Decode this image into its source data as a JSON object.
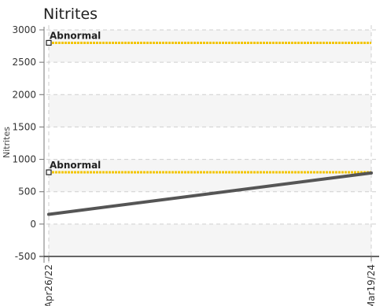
{
  "chart_data": {
    "type": "line",
    "title": "Nitrites",
    "xlabel": "",
    "ylabel": "Nitrites",
    "categories": [
      "Apr26/22",
      "Mar19/24"
    ],
    "yticks": [
      3000,
      2500,
      2000,
      1500,
      1000,
      500,
      0,
      -500
    ],
    "ylim": [
      -500,
      3000
    ],
    "grid": true,
    "series": [
      {
        "values": [
          150,
          790
        ],
        "color": "#555555"
      }
    ],
    "reference_lines": [
      {
        "label": "Abnormal",
        "value": 2800,
        "color": "#f2c500"
      },
      {
        "label": "Abnormal",
        "value": 800,
        "color": "#f2c500"
      }
    ]
  }
}
